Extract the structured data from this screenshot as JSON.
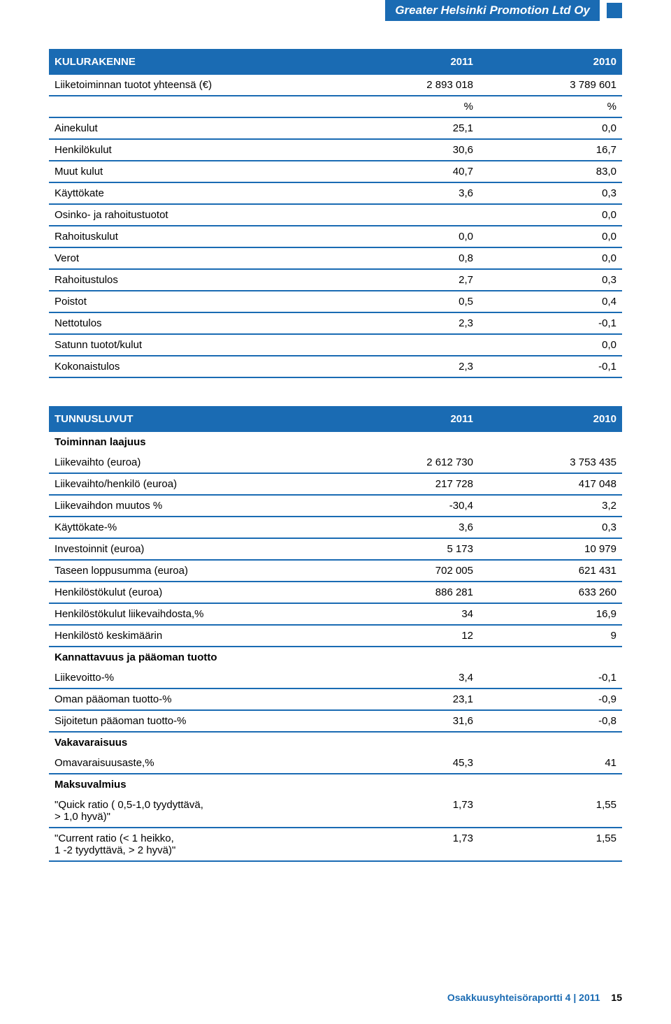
{
  "header": {
    "title": "Greater Helsinki Promotion Ltd Oy"
  },
  "colors": {
    "primary": "#1a6bb3",
    "text": "#000000",
    "background": "#ffffff",
    "row_border": "#1a6bb3"
  },
  "typography": {
    "body_font": "Arial, Helvetica, sans-serif",
    "body_size_pt": 11,
    "header_size_pt": 13
  },
  "table1": {
    "title": "KULURAKENNE",
    "col_years": [
      "2011",
      "2010"
    ],
    "rows": [
      {
        "label": "Liiketoiminnan tuotot yhteensä (€)",
        "v1": "2 893 018",
        "v2": "3 789 601",
        "border": true
      },
      {
        "label": "",
        "v1": "%",
        "v2": "%",
        "border": true
      },
      {
        "label": "Ainekulut",
        "v1": "25,1",
        "v2": "0,0",
        "border": true
      },
      {
        "label": "Henkilökulut",
        "v1": "30,6",
        "v2": "16,7",
        "border": true
      },
      {
        "label": "Muut kulut",
        "v1": "40,7",
        "v2": "83,0",
        "border": true
      },
      {
        "label": "Käyttökate",
        "v1": "3,6",
        "v2": "0,3",
        "border": true
      },
      {
        "label": "Osinko- ja rahoitustuotot",
        "v1": "",
        "v2": "0,0",
        "border": true
      },
      {
        "label": "Rahoituskulut",
        "v1": "0,0",
        "v2": "0,0",
        "border": true
      },
      {
        "label": "Verot",
        "v1": "0,8",
        "v2": "0,0",
        "border": true
      },
      {
        "label": "Rahoitustulos",
        "v1": "2,7",
        "v2": "0,3",
        "border": true
      },
      {
        "label": "Poistot",
        "v1": "0,5",
        "v2": "0,4",
        "border": true
      },
      {
        "label": "Nettotulos",
        "v1": "2,3",
        "v2": "-0,1",
        "border": true
      },
      {
        "label": "Satunn tuotot/kulut",
        "v1": "",
        "v2": "0,0",
        "border": true
      },
      {
        "label": "Kokonaistulos",
        "v1": "2,3",
        "v2": "-0,1",
        "border": true
      }
    ]
  },
  "table2": {
    "title": "TUNNUSLUVUT",
    "col_years": [
      "2011",
      "2010"
    ],
    "rows": [
      {
        "label": "Toiminnan laajuus",
        "v1": "",
        "v2": "",
        "bold": true,
        "border": false
      },
      {
        "label": "Liikevaihto (euroa)",
        "v1": "2 612 730",
        "v2": "3 753 435",
        "border": true
      },
      {
        "label": "Liikevaihto/henkilö (euroa)",
        "v1": "217 728",
        "v2": "417 048",
        "border": true
      },
      {
        "label": "Liikevaihdon muutos %",
        "v1": "-30,4",
        "v2": "3,2",
        "border": true
      },
      {
        "label": "Käyttökate-%",
        "v1": "3,6",
        "v2": "0,3",
        "border": true
      },
      {
        "label": "Investoinnit (euroa)",
        "v1": "5 173",
        "v2": "10 979",
        "border": true
      },
      {
        "label": "Taseen loppusumma (euroa)",
        "v1": "702 005",
        "v2": "621 431",
        "border": true
      },
      {
        "label": "Henkilöstökulut (euroa)",
        "v1": "886 281",
        "v2": "633 260",
        "border": true
      },
      {
        "label": "Henkilöstökulut liikevaihdosta,%",
        "v1": "34",
        "v2": "16,9",
        "border": true
      },
      {
        "label": "Henkilöstö keskimäärin",
        "v1": "12",
        "v2": "9",
        "border": true
      },
      {
        "label": "Kannattavuus ja pääoman tuotto",
        "v1": "",
        "v2": "",
        "bold": true,
        "border": false
      },
      {
        "label": "Liikevoitto-%",
        "v1": "3,4",
        "v2": "-0,1",
        "border": true
      },
      {
        "label": "Oman pääoman tuotto-%",
        "v1": "23,1",
        "v2": "-0,9",
        "border": true
      },
      {
        "label": "Sijoitetun pääoman tuotto-%",
        "v1": "31,6",
        "v2": "-0,8",
        "border": true
      },
      {
        "label": "Vakavaraisuus",
        "v1": "",
        "v2": "",
        "bold": true,
        "border": false
      },
      {
        "label": "Omavaraisuusaste,%",
        "v1": "45,3",
        "v2": "41",
        "border": true
      },
      {
        "label": "Maksuvalmius",
        "v1": "",
        "v2": "",
        "bold": true,
        "border": false
      },
      {
        "label": "\"Quick ratio ( 0,5-1,0 tyydyttävä,\n> 1,0 hyvä)\"",
        "v1": "1,73",
        "v2": "1,55",
        "border": true
      },
      {
        "label": "\"Current ratio (< 1 heikko,\n1 -2 tyydyttävä, > 2 hyvä)\"",
        "v1": "1,73",
        "v2": "1,55",
        "border": true
      }
    ]
  },
  "footer": {
    "text": "Osakkuusyhteisöraportti 4 | 2011",
    "page": "15"
  }
}
